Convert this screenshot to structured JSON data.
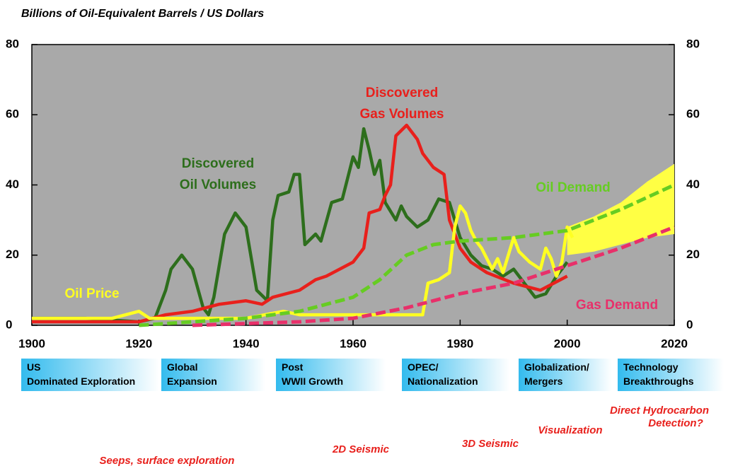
{
  "chart_data": {
    "type": "line",
    "title": "Billions of Oil-Equivalent Barrels / US Dollars",
    "xlim": [
      1900,
      2020
    ],
    "xticks": [
      1900,
      1920,
      1940,
      1960,
      1980,
      2000,
      2020
    ],
    "ylim": [
      0,
      80
    ],
    "yticks": [
      0,
      20,
      40,
      60,
      80
    ],
    "y2lim": [
      0,
      80
    ],
    "y2ticks": [
      0,
      20,
      40,
      60,
      80
    ],
    "background": "#a9a9a9",
    "series": [
      {
        "name": "Discovered Oil Volumes",
        "color": "#2d6e1c",
        "dashed": false,
        "x": [
          1900,
          1910,
          1920,
          1923,
          1925,
          1926,
          1928,
          1930,
          1932,
          1933,
          1934,
          1936,
          1938,
          1940,
          1942,
          1944,
          1945,
          1946,
          1948,
          1949,
          1950,
          1951,
          1953,
          1954,
          1956,
          1958,
          1960,
          1961,
          1962,
          1963,
          1964,
          1965,
          1966,
          1968,
          1969,
          1970,
          1972,
          1974,
          1976,
          1978,
          1980,
          1982,
          1984,
          1986,
          1988,
          1990,
          1992,
          1994,
          1996,
          1998,
          2000
        ],
        "values": [
          2,
          2,
          1,
          2,
          10,
          16,
          20,
          16,
          5,
          3,
          8,
          26,
          32,
          28,
          10,
          7,
          30,
          37,
          38,
          43,
          43,
          23,
          26,
          24,
          35,
          36,
          48,
          45,
          56,
          50,
          43,
          47,
          35,
          30,
          34,
          31,
          28,
          30,
          36,
          35,
          25,
          20,
          17,
          16,
          14,
          16,
          12,
          8,
          9,
          14,
          18
        ]
      },
      {
        "name": "Discovered Gas Volumes",
        "color": "#e8201c",
        "dashed": false,
        "x": [
          1900,
          1920,
          1925,
          1930,
          1935,
          1940,
          1943,
          1945,
          1950,
          1953,
          1955,
          1960,
          1962,
          1963,
          1965,
          1966,
          1967,
          1968,
          1970,
          1972,
          1973,
          1975,
          1977,
          1978,
          1980,
          1982,
          1985,
          1990,
          1995,
          2000
        ],
        "values": [
          1,
          1,
          3,
          4,
          6,
          7,
          6,
          8,
          10,
          13,
          14,
          18,
          22,
          32,
          33,
          37,
          40,
          54,
          57,
          53,
          49,
          45,
          43,
          30,
          22,
          18,
          15,
          12,
          10,
          14
        ]
      },
      {
        "name": "Oil Price",
        "color": "#ffff22",
        "dashed": false,
        "x": [
          1900,
          1910,
          1915,
          1920,
          1922,
          1930,
          1940,
          1947,
          1950,
          1960,
          1970,
          1973,
          1974,
          1976,
          1978,
          1979,
          1980,
          1981,
          1982,
          1983,
          1984,
          1985,
          1986,
          1987,
          1988,
          1989,
          1990,
          1991,
          1993,
          1995,
          1996,
          1997,
          1998,
          1999,
          2000,
          2001
        ],
        "values": [
          2,
          2,
          2,
          4,
          2,
          2,
          2,
          4,
          3,
          3,
          3,
          3,
          12,
          13,
          15,
          28,
          34,
          32,
          27,
          24,
          22,
          19,
          16,
          19,
          15,
          20,
          25,
          21,
          18,
          16,
          22,
          19,
          14,
          18,
          28,
          25
        ]
      },
      {
        "name": "Oil Demand",
        "color": "#66cc22",
        "dashed": true,
        "x": [
          1920,
          1930,
          1940,
          1950,
          1960,
          1965,
          1970,
          1975,
          1980,
          1990,
          2000,
          2010,
          2020
        ],
        "values": [
          0,
          1,
          2,
          4,
          8,
          13,
          20,
          23,
          24,
          25,
          27,
          33,
          40
        ]
      },
      {
        "name": "Gas Demand",
        "color": "#e8306a",
        "dashed": true,
        "x": [
          1930,
          1950,
          1960,
          1970,
          1980,
          1990,
          2000,
          2010,
          2020
        ],
        "values": [
          0,
          1,
          2,
          5,
          9,
          12,
          17,
          22,
          28
        ]
      }
    ],
    "band": {
      "color": "#ffff44",
      "x": [
        2000,
        2005,
        2010,
        2015,
        2020
      ],
      "upper": [
        28,
        31,
        35,
        41,
        46
      ],
      "lower": [
        20,
        21,
        23,
        25,
        26
      ]
    },
    "eras": [
      "US Dominated Exploration",
      "Global Expansion",
      "Post WWII Growth",
      "OPEC/ Nationalization",
      "Globalization/ Mergers",
      "Technology Breakthroughs"
    ],
    "technologies": [
      "Seeps, surface exploration",
      "2D Seismic",
      "3D Seismic",
      "Visualization",
      "Direct Hydrocarbon Detection?"
    ]
  }
}
